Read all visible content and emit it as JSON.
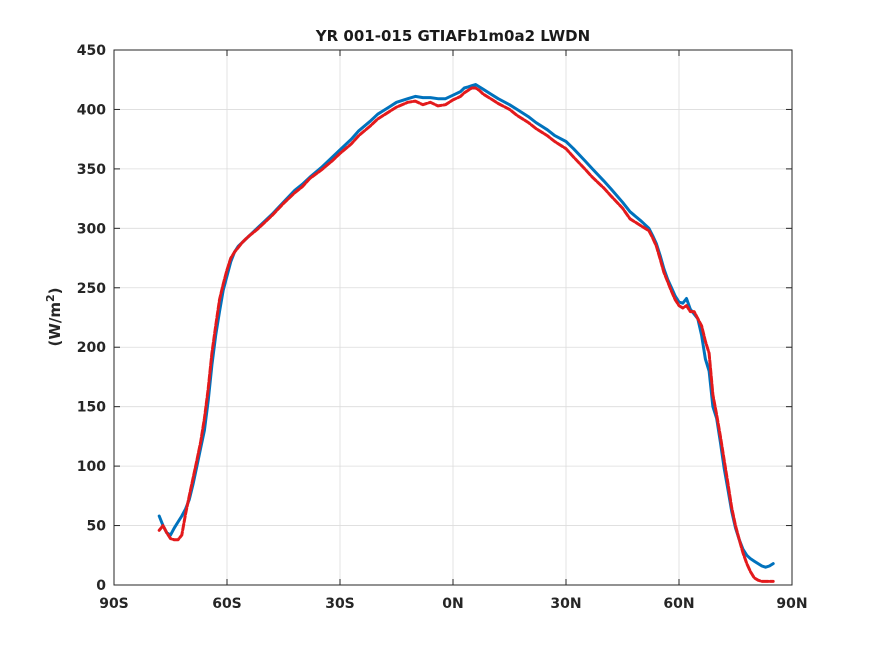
{
  "chart_data": {
    "type": "line",
    "title": "YR 001-015 GTIAFb1m0a2 LWDN",
    "xlabel": "",
    "ylabel": "(W/m",
    "ylabel_superscript": "2",
    "ylabel_close": ")",
    "xlim": [
      -90,
      90
    ],
    "ylim": [
      0,
      450
    ],
    "xticks": [
      -90,
      -60,
      -30,
      0,
      30,
      60,
      90
    ],
    "xtick_labels": [
      "90S",
      "60S",
      "30S",
      "0N",
      "30N",
      "60N",
      "90N"
    ],
    "yticks": [
      0,
      50,
      100,
      150,
      200,
      250,
      300,
      350,
      400,
      450
    ],
    "ytick_labels": [
      "0",
      "50",
      "100",
      "150",
      "200",
      "250",
      "300",
      "350",
      "400",
      "450"
    ],
    "grid": true,
    "series": [
      {
        "color": "#0072bd",
        "style": "solid",
        "x": [
          -78,
          -77,
          -76,
          -75,
          -74,
          -73,
          -72,
          -71,
          -70,
          -69,
          -68,
          -67,
          -66,
          -65,
          -64,
          -63,
          -62,
          -61,
          -60,
          -59,
          -58,
          -57,
          -56,
          -55,
          -54,
          -52,
          -50,
          -48,
          -45,
          -42,
          -40,
          -38,
          -35,
          -32,
          -30,
          -27,
          -25,
          -22,
          -20,
          -17,
          -15,
          -12,
          -10,
          -8,
          -6,
          -4,
          -2,
          0,
          2,
          3,
          4,
          5,
          6,
          7,
          8,
          10,
          12,
          15,
          17,
          20,
          22,
          25,
          27,
          30,
          32,
          35,
          37,
          40,
          42,
          45,
          47,
          50,
          52,
          53,
          54,
          55,
          56,
          57,
          58,
          59,
          60,
          61,
          62,
          63,
          64,
          65,
          66,
          67,
          68,
          69,
          70,
          71,
          72,
          73,
          74,
          75,
          76,
          77,
          78,
          79,
          80,
          81,
          82,
          83,
          84,
          85
        ],
        "y": [
          58,
          50,
          44,
          42,
          48,
          53,
          58,
          64,
          72,
          85,
          100,
          115,
          130,
          155,
          185,
          210,
          230,
          248,
          260,
          272,
          280,
          285,
          288,
          291,
          294,
          300,
          306,
          312,
          322,
          332,
          337,
          343,
          351,
          360,
          366,
          375,
          382,
          390,
          396,
          402,
          406,
          409,
          411,
          410,
          410,
          409,
          409,
          412,
          415,
          418,
          419,
          420,
          421,
          419,
          417,
          413,
          409,
          404,
          400,
          394,
          389,
          383,
          378,
          373,
          367,
          357,
          350,
          340,
          333,
          322,
          314,
          306,
          300,
          294,
          287,
          277,
          266,
          257,
          250,
          243,
          238,
          237,
          241,
          232,
          228,
          224,
          210,
          190,
          180,
          150,
          140,
          120,
          98,
          80,
          62,
          48,
          38,
          30,
          25,
          22,
          20,
          18,
          16,
          15,
          16,
          18
        ]
      },
      {
        "color": "#e31a1c",
        "style": "dashed",
        "x": [
          -78,
          -77,
          -76,
          -75,
          -74,
          -73,
          -72,
          -71,
          -70,
          -69,
          -68,
          -67,
          -66,
          -65,
          -64,
          -63,
          -62,
          -61,
          -60,
          -59,
          -58,
          -57,
          -56,
          -55,
          -54,
          -52,
          -50,
          -48,
          -45,
          -42,
          -40,
          -38,
          -35,
          -32,
          -30,
          -27,
          -25,
          -22,
          -20,
          -17,
          -15,
          -12,
          -10,
          -8,
          -6,
          -4,
          -2,
          0,
          2,
          3,
          4,
          5,
          6,
          7,
          8,
          10,
          12,
          15,
          17,
          20,
          22,
          25,
          27,
          30,
          32,
          35,
          37,
          40,
          42,
          45,
          47,
          50,
          52,
          53,
          54,
          55,
          56,
          57,
          58,
          59,
          60,
          61,
          62,
          63,
          64,
          65,
          66,
          67,
          68,
          69,
          70,
          71,
          72,
          73,
          74,
          75,
          76,
          77,
          78,
          79,
          80,
          81,
          82,
          83,
          84,
          85
        ],
        "y": [
          46,
          50,
          44,
          39,
          38,
          38,
          42,
          60,
          75,
          90,
          105,
          120,
          140,
          165,
          195,
          218,
          240,
          253,
          265,
          275,
          280,
          284,
          288,
          291,
          294,
          299,
          305,
          311,
          321,
          330,
          335,
          342,
          349,
          357,
          363,
          371,
          378,
          386,
          392,
          398,
          402,
          406,
          407,
          404,
          406,
          403,
          404,
          408,
          411,
          414,
          416,
          418,
          418,
          416,
          413,
          409,
          405,
          400,
          395,
          389,
          384,
          378,
          373,
          367,
          360,
          350,
          343,
          334,
          327,
          317,
          308,
          302,
          298,
          292,
          285,
          274,
          263,
          255,
          247,
          240,
          235,
          233,
          235,
          230,
          230,
          224,
          218,
          205,
          195,
          160,
          143,
          125,
          105,
          85,
          65,
          50,
          38,
          27,
          18,
          11,
          6,
          4,
          3,
          3,
          3,
          3
        ]
      }
    ]
  }
}
